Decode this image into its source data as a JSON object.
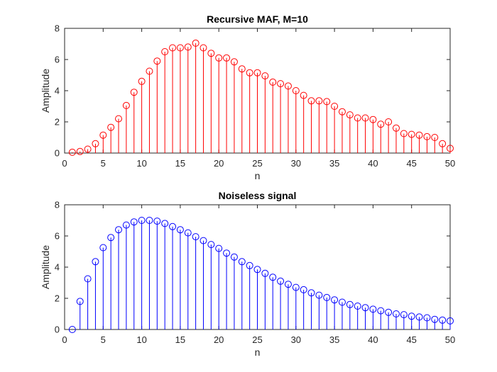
{
  "chart_data": [
    {
      "type": "stem",
      "title": "Recursive MAF, M=10",
      "xlabel": "n",
      "ylabel": "Amplitude",
      "xlim": [
        0,
        50
      ],
      "ylim": [
        0,
        8
      ],
      "xticks": [
        "0",
        "5",
        "10",
        "15",
        "20",
        "25",
        "30",
        "35",
        "40",
        "45",
        "50"
      ],
      "yticks": [
        "0",
        "2",
        "4",
        "6",
        "8"
      ],
      "color": "#ff0000",
      "grid": false,
      "x": [
        1,
        2,
        3,
        4,
        5,
        6,
        7,
        8,
        9,
        10,
        11,
        12,
        13,
        14,
        15,
        16,
        17,
        18,
        19,
        20,
        21,
        22,
        23,
        24,
        25,
        26,
        27,
        28,
        29,
        30,
        31,
        32,
        33,
        34,
        35,
        36,
        37,
        38,
        39,
        40,
        41,
        42,
        43,
        44,
        45,
        46,
        47,
        48,
        49,
        50
      ],
      "values": [
        0.05,
        0.1,
        0.25,
        0.6,
        1.15,
        1.65,
        2.2,
        3.05,
        3.9,
        4.6,
        5.25,
        5.9,
        6.5,
        6.75,
        6.75,
        6.8,
        7.05,
        6.75,
        6.4,
        6.1,
        6.1,
        5.85,
        5.4,
        5.15,
        5.15,
        4.95,
        4.55,
        4.45,
        4.3,
        4.0,
        3.7,
        3.35,
        3.35,
        3.3,
        3.0,
        2.65,
        2.45,
        2.25,
        2.25,
        2.15,
        1.85,
        2.0,
        1.6,
        1.25,
        1.2,
        1.15,
        1.05,
        1.0,
        0.6,
        0.3
      ]
    },
    {
      "type": "stem",
      "title": "Noiseless signal",
      "xlabel": "n",
      "ylabel": "Amplitude",
      "xlim": [
        0,
        50
      ],
      "ylim": [
        0,
        8
      ],
      "xticks": [
        "0",
        "5",
        "10",
        "15",
        "20",
        "25",
        "30",
        "35",
        "40",
        "45",
        "50"
      ],
      "yticks": [
        "0",
        "2",
        "4",
        "6",
        "8"
      ],
      "color": "#0000ff",
      "grid": false,
      "x": [
        1,
        2,
        3,
        4,
        5,
        6,
        7,
        8,
        9,
        10,
        11,
        12,
        13,
        14,
        15,
        16,
        17,
        18,
        19,
        20,
        21,
        22,
        23,
        24,
        25,
        26,
        27,
        28,
        29,
        30,
        31,
        32,
        33,
        34,
        35,
        36,
        37,
        38,
        39,
        40,
        41,
        42,
        43,
        44,
        45,
        46,
        47,
        48,
        49,
        50
      ],
      "values": [
        0,
        1.8,
        3.25,
        4.35,
        5.25,
        5.9,
        6.4,
        6.7,
        6.9,
        7.0,
        7.0,
        6.95,
        6.8,
        6.6,
        6.4,
        6.2,
        5.95,
        5.7,
        5.45,
        5.2,
        4.9,
        4.65,
        4.35,
        4.1,
        3.85,
        3.6,
        3.35,
        3.1,
        2.9,
        2.7,
        2.55,
        2.35,
        2.2,
        2.05,
        1.9,
        1.75,
        1.6,
        1.5,
        1.4,
        1.3,
        1.2,
        1.1,
        1.0,
        0.95,
        0.85,
        0.8,
        0.75,
        0.65,
        0.6,
        0.55
      ]
    }
  ]
}
